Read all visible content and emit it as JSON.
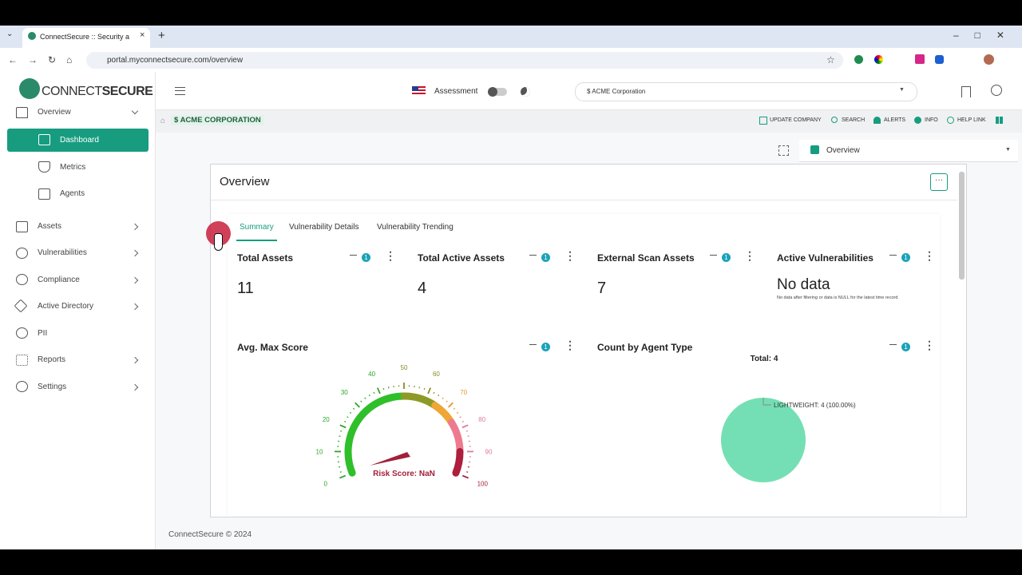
{
  "browser": {
    "tab_title": "ConnectSecure :: Security and V",
    "url": "portal.myconnectsecure.com/overview"
  },
  "sidebar": {
    "logo_light": "CONNECT",
    "logo_bold": "SECURE",
    "items": [
      "Overview",
      "Dashboard",
      "Metrics",
      "Agents",
      "Assets",
      "Vulnerabilities",
      "Compliance",
      "Active Directory",
      "PII",
      "Reports",
      "Settings"
    ]
  },
  "header": {
    "mode": "Assessment",
    "company_select": "$ ACME Corporation"
  },
  "breadcrumb": {
    "company": "$ ACME CORPORATION",
    "links": [
      "UPDATE COMPANY",
      "SEARCH",
      "ALERTS",
      "INFO",
      "HELP LINK"
    ]
  },
  "view_select": "Overview",
  "card": {
    "title": "Overview",
    "tabs": [
      "Summary",
      "Vulnerability Details",
      "Vulnerability Trending"
    ],
    "widgets": [
      {
        "title": "Total Assets",
        "filters": 1,
        "value": 11
      },
      {
        "title": "Total Active Assets",
        "filters": 1,
        "value": 4
      },
      {
        "title": "External Scan Assets",
        "filters": 1,
        "value": 7
      },
      {
        "title": "Active Vulnerabilities",
        "filters": 1,
        "value": "No data",
        "note": "No data after filtering or data is NULL for the latest time record"
      },
      {
        "title": "Avg. Max Score",
        "filters": 1,
        "gauge_ticks": [
          0,
          10,
          20,
          30,
          40,
          50,
          60,
          70,
          80,
          90,
          100
        ],
        "score_label": "Risk Score: NaN"
      },
      {
        "title": "Count by Agent Type",
        "filters": 1,
        "total": "Total: 4",
        "slices": [
          {
            "value": 4,
            "label": "LIGHTWEIGHT: 4 (100.00%)"
          }
        ]
      }
    ]
  },
  "footer": "ConnectSecure © 2024"
}
